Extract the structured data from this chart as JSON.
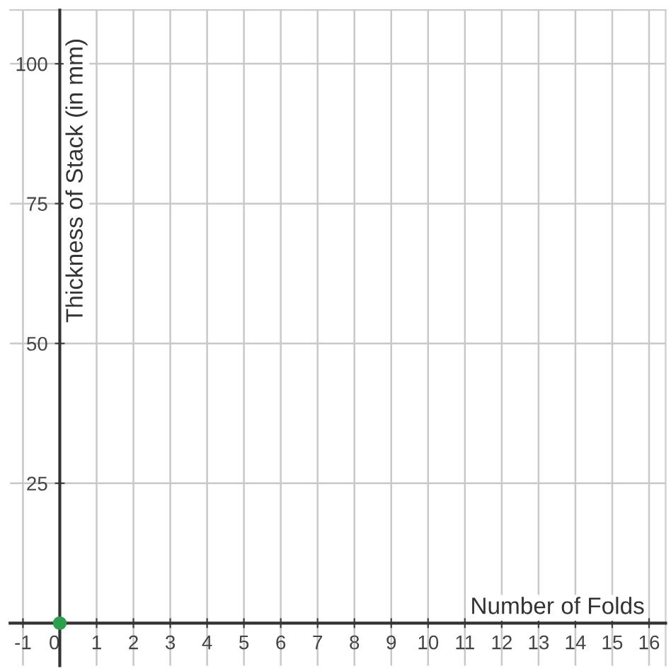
{
  "chart_data": {
    "type": "scatter",
    "xlabel": "Number of Folds",
    "ylabel": "Thickness of Stack (in mm)",
    "x": [
      0
    ],
    "values": [
      0
    ],
    "color": "#2e9e4f",
    "marker": "circle",
    "xlim": [
      -1.35,
      16.45
    ],
    "ylim": [
      -7.6,
      109.6
    ],
    "xticks": [
      -1,
      0,
      1,
      2,
      3,
      4,
      5,
      6,
      7,
      8,
      9,
      10,
      11,
      12,
      13,
      14,
      15,
      16
    ],
    "yticks": [
      25,
      50,
      75,
      100
    ],
    "grid": true,
    "legend": false
  }
}
